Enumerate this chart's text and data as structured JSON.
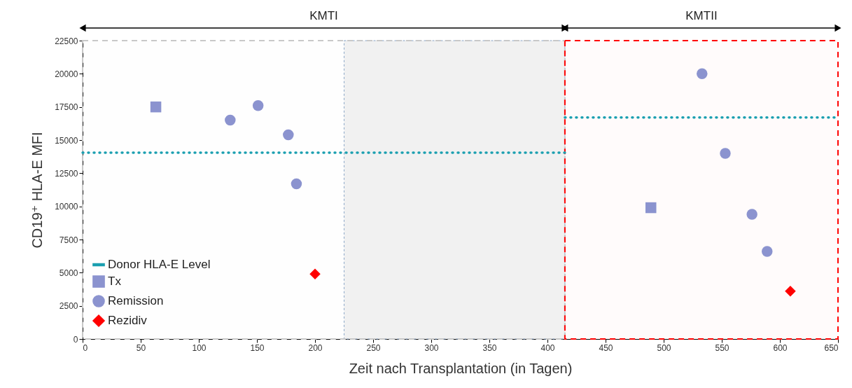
{
  "chart_data": {
    "type": "scatter",
    "xlabel": "Zeit nach Transplantation (in Tagen)",
    "ylabel": "CD19⁺ HLA-E MFI",
    "xlim": [
      0,
      650
    ],
    "xticks": [
      0,
      50,
      100,
      150,
      200,
      250,
      300,
      350,
      400,
      450,
      500,
      550,
      600,
      650
    ],
    "ylim": [
      0,
      22500
    ],
    "yticks": [
      0,
      2500,
      5000,
      7500,
      10000,
      12500,
      15000,
      17500,
      20000,
      22500
    ],
    "grid": false,
    "legend": "bottom left",
    "bands": [
      {
        "axis": "x",
        "from": 225,
        "to": 415,
        "color": "#f2f2f2"
      },
      {
        "axis": "x",
        "from": 0,
        "to": 415,
        "label": "KMTI",
        "color": "#c8c8c8"
      },
      {
        "axis": "x",
        "from": 415,
        "to": 650,
        "label": "KMTII",
        "color": "#ff0000"
      }
    ],
    "series": [
      {
        "name": "Donor HLA-E Level",
        "type": "line",
        "line_style": "dotted",
        "marker": "none",
        "color": "#1a9fb0",
        "x": [
          0,
          415
        ],
        "values": [
          14050,
          14050
        ]
      },
      {
        "type": "line",
        "line_style": "dotted",
        "marker": "none",
        "color": "#1a9fb0",
        "x": [
          415,
          650
        ],
        "values": [
          16700,
          16700
        ]
      },
      {
        "name": "Tx",
        "marker": "square",
        "color": "#8b93cf",
        "x": [
          63,
          489
        ],
        "values": [
          17500,
          9900
        ]
      },
      {
        "name": "Remission",
        "marker": "circle",
        "color": "#8b93cf",
        "x": [
          127,
          151,
          177,
          184,
          533,
          553,
          576,
          589
        ],
        "values": [
          16500,
          17600,
          15400,
          11700,
          20000,
          14000,
          9400,
          6600
        ]
      },
      {
        "name": "Rezidiv",
        "marker": "diamond",
        "color": "#ff0000",
        "x": [
          200,
          609
        ],
        "values": [
          4900,
          3600
        ]
      }
    ]
  }
}
